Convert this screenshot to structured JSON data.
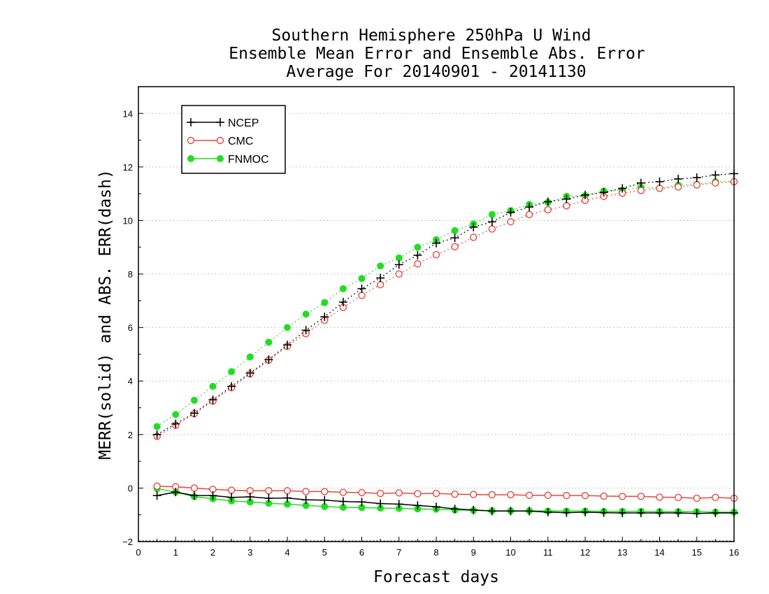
{
  "chart_data": {
    "type": "line",
    "title": [
      "Southern Hemisphere 250hPa U Wind",
      "Ensemble Mean Error and Ensemble Abs. Error",
      "Average For 20140901 - 20141130"
    ],
    "xlabel": "Forecast days",
    "ylabel": "MERR(solid) and ABS. ERR(dash)",
    "xlim": [
      0,
      16
    ],
    "ylim": [
      -2,
      15
    ],
    "xticks": [
      "0",
      "1",
      "2",
      "3",
      "4",
      "5",
      "6",
      "7",
      "8",
      "9",
      "10",
      "11",
      "12",
      "13",
      "14",
      "15",
      "16"
    ],
    "yticks": [
      "−2",
      "0",
      "2",
      "4",
      "6",
      "8",
      "10",
      "12",
      "14"
    ],
    "grid": "horizontal dotted",
    "legend_position": "top-left",
    "x": [
      0.5,
      1,
      1.5,
      2,
      2.5,
      3,
      3.5,
      4,
      4.5,
      5,
      5.5,
      6,
      6.5,
      7,
      7.5,
      8,
      8.5,
      9,
      9.5,
      10,
      10.5,
      11,
      11.5,
      12,
      12.5,
      13,
      13.5,
      14,
      14.5,
      15,
      15.5,
      16
    ],
    "series": [
      {
        "name": "NCEP",
        "color": "#000000",
        "marker": "plus",
        "merr": [
          -0.28,
          -0.15,
          -0.28,
          -0.28,
          -0.35,
          -0.33,
          -0.38,
          -0.37,
          -0.44,
          -0.45,
          -0.5,
          -0.52,
          -0.58,
          -0.6,
          -0.65,
          -0.7,
          -0.78,
          -0.82,
          -0.86,
          -0.86,
          -0.86,
          -0.9,
          -0.92,
          -0.9,
          -0.92,
          -0.93,
          -0.93,
          -0.93,
          -0.93,
          -0.95,
          -0.93,
          -0.93
        ],
        "abs_err": [
          2.0,
          2.4,
          2.8,
          3.3,
          3.8,
          4.3,
          4.8,
          5.35,
          5.9,
          6.4,
          6.95,
          7.45,
          7.85,
          8.35,
          8.7,
          9.15,
          9.35,
          9.75,
          9.95,
          10.3,
          10.5,
          10.7,
          10.8,
          10.95,
          11.05,
          11.2,
          11.4,
          11.45,
          11.55,
          11.6,
          11.7,
          11.75
        ]
      },
      {
        "name": "CMC",
        "color": "#e8473f",
        "marker": "open-circle",
        "merr": [
          0.07,
          0.05,
          0.0,
          -0.05,
          -0.08,
          -0.1,
          -0.1,
          -0.1,
          -0.13,
          -0.13,
          -0.16,
          -0.17,
          -0.2,
          -0.18,
          -0.21,
          -0.2,
          -0.23,
          -0.24,
          -0.25,
          -0.25,
          -0.27,
          -0.27,
          -0.28,
          -0.28,
          -0.3,
          -0.31,
          -0.31,
          -0.34,
          -0.35,
          -0.38,
          -0.35,
          -0.38
        ],
        "abs_err": [
          1.93,
          2.35,
          2.78,
          3.25,
          3.75,
          4.27,
          4.78,
          5.3,
          5.77,
          6.27,
          6.75,
          7.2,
          7.6,
          8.0,
          8.38,
          8.72,
          9.02,
          9.37,
          9.68,
          9.95,
          10.22,
          10.4,
          10.55,
          10.75,
          10.9,
          11.02,
          11.12,
          11.2,
          11.25,
          11.33,
          11.4,
          11.45
        ]
      },
      {
        "name": "FNMOC",
        "color": "#22dd22",
        "marker": "filled-circle",
        "merr": [
          -0.02,
          -0.15,
          -0.32,
          -0.4,
          -0.48,
          -0.52,
          -0.57,
          -0.6,
          -0.65,
          -0.69,
          -0.72,
          -0.73,
          -0.75,
          -0.76,
          -0.78,
          -0.79,
          -0.82,
          -0.83,
          -0.85,
          -0.85,
          -0.85,
          -0.86,
          -0.86,
          -0.86,
          -0.87,
          -0.87,
          -0.87,
          -0.88,
          -0.88,
          -0.88,
          -0.9,
          -0.9
        ],
        "abs_err": [
          2.3,
          2.75,
          3.28,
          3.8,
          4.35,
          4.9,
          5.45,
          6.0,
          6.5,
          6.93,
          7.45,
          7.83,
          8.3,
          8.6,
          9.0,
          9.28,
          9.62,
          9.87,
          10.22,
          10.37,
          10.6,
          10.68,
          10.9,
          10.93,
          11.1,
          11.12,
          11.25,
          11.2,
          11.32,
          11.35,
          11.45,
          11.45
        ]
      }
    ]
  }
}
